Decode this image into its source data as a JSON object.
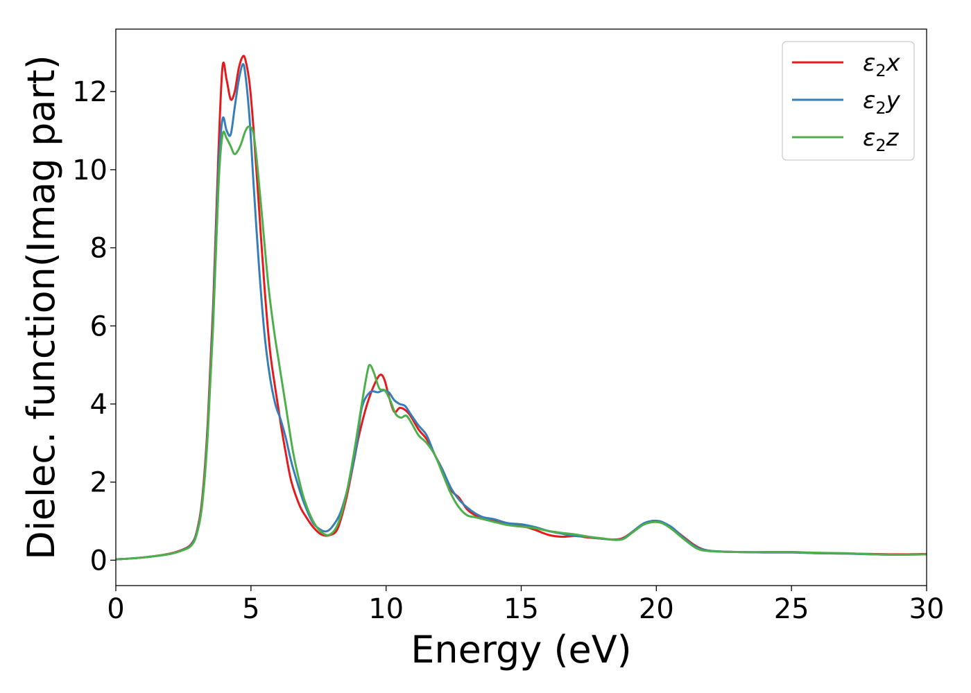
{
  "chart_data": {
    "type": "line",
    "title": "",
    "xlabel": "Energy (eV)",
    "ylabel": "Dielec. function(Imag part)",
    "xlim": [
      0,
      30
    ],
    "ylim": [
      -0.65,
      13.6
    ],
    "xticks": [
      0,
      5,
      10,
      15,
      20,
      25,
      30
    ],
    "yticks": [
      0,
      2,
      4,
      6,
      8,
      10,
      12
    ],
    "grid": false,
    "legend_position": "top-right",
    "series": [
      {
        "name": "ε₂x",
        "legend_base": "ε",
        "legend_sub": "2",
        "legend_suffix": "x",
        "color": "#e41a1c",
        "x": [
          0,
          1,
          2,
          2.5,
          2.8,
          3.0,
          3.2,
          3.4,
          3.6,
          3.8,
          3.95,
          4.1,
          4.25,
          4.4,
          4.55,
          4.7,
          4.8,
          4.95,
          5.1,
          5.3,
          5.5,
          5.7,
          5.9,
          6.1,
          6.3,
          6.5,
          6.8,
          7.0,
          7.3,
          7.6,
          7.9,
          8.2,
          8.5,
          8.8,
          9.0,
          9.3,
          9.6,
          9.8,
          9.95,
          10.1,
          10.3,
          10.5,
          10.7,
          10.9,
          11.2,
          11.5,
          11.8,
          12.1,
          12.4,
          12.7,
          13.0,
          13.3,
          13.6,
          14.0,
          14.5,
          15.0,
          15.5,
          16.0,
          16.5,
          17.0,
          17.5,
          18.0,
          18.5,
          18.8,
          19.1,
          19.5,
          19.8,
          20.1,
          20.3,
          20.6,
          21.0,
          21.5,
          22,
          23,
          24,
          25,
          25.5,
          26,
          27,
          28,
          29,
          30
        ],
        "values": [
          0.02,
          0.07,
          0.17,
          0.28,
          0.42,
          0.75,
          1.6,
          3.5,
          6.5,
          10.5,
          12.65,
          12.3,
          11.8,
          12.0,
          12.6,
          12.9,
          12.8,
          12.2,
          11.0,
          9.0,
          7.0,
          5.4,
          4.4,
          3.5,
          2.7,
          2.0,
          1.4,
          1.15,
          0.85,
          0.66,
          0.64,
          0.8,
          1.5,
          2.5,
          3.2,
          4.0,
          4.55,
          4.75,
          4.6,
          4.2,
          3.8,
          3.9,
          3.85,
          3.7,
          3.35,
          3.1,
          2.7,
          2.3,
          1.8,
          1.6,
          1.3,
          1.15,
          1.05,
          1.0,
          0.92,
          0.88,
          0.78,
          0.65,
          0.6,
          0.62,
          0.58,
          0.55,
          0.53,
          0.58,
          0.72,
          0.92,
          1.0,
          1.0,
          0.95,
          0.82,
          0.6,
          0.35,
          0.24,
          0.21,
          0.2,
          0.2,
          0.19,
          0.18,
          0.17,
          0.16,
          0.15,
          0.16
        ]
      },
      {
        "name": "ε₂y",
        "legend_base": "ε",
        "legend_sub": "2",
        "legend_suffix": "y",
        "color": "#377eb8",
        "x": [
          0,
          1,
          2,
          2.5,
          2.8,
          3.0,
          3.2,
          3.4,
          3.6,
          3.8,
          3.95,
          4.1,
          4.25,
          4.4,
          4.55,
          4.7,
          4.8,
          4.95,
          5.1,
          5.3,
          5.5,
          5.7,
          5.9,
          6.1,
          6.3,
          6.5,
          6.8,
          7.0,
          7.3,
          7.6,
          7.8,
          8.0,
          8.3,
          8.6,
          8.9,
          9.1,
          9.4,
          9.7,
          9.9,
          10.1,
          10.3,
          10.5,
          10.7,
          10.9,
          11.2,
          11.5,
          11.8,
          12.1,
          12.4,
          12.7,
          13.0,
          13.3,
          13.6,
          14.0,
          14.5,
          15.0,
          15.5,
          16.0,
          16.5,
          17.0,
          17.5,
          18.0,
          18.5,
          18.8,
          19.1,
          19.5,
          19.8,
          20.1,
          20.3,
          20.6,
          21.0,
          21.5,
          22,
          23,
          24,
          25,
          25.5,
          26,
          27,
          28,
          29,
          30
        ],
        "values": [
          0.02,
          0.07,
          0.16,
          0.27,
          0.4,
          0.72,
          1.5,
          3.3,
          6.2,
          10.0,
          11.3,
          11.0,
          10.9,
          11.6,
          12.3,
          12.7,
          12.4,
          11.3,
          9.6,
          7.5,
          5.8,
          4.7,
          4.0,
          3.6,
          3.1,
          2.5,
          1.8,
          1.4,
          0.95,
          0.77,
          0.74,
          0.85,
          1.2,
          1.9,
          2.9,
          3.9,
          4.3,
          4.3,
          4.35,
          4.3,
          4.1,
          4.0,
          3.95,
          3.75,
          3.45,
          3.2,
          2.7,
          2.3,
          1.85,
          1.55,
          1.35,
          1.2,
          1.1,
          1.05,
          0.95,
          0.92,
          0.85,
          0.75,
          0.68,
          0.62,
          0.6,
          0.55,
          0.52,
          0.56,
          0.72,
          0.93,
          1.0,
          1.0,
          0.95,
          0.83,
          0.58,
          0.33,
          0.24,
          0.21,
          0.2,
          0.2,
          0.19,
          0.18,
          0.17,
          0.15,
          0.14,
          0.15
        ]
      },
      {
        "name": "ε₂z",
        "legend_base": "ε",
        "legend_sub": "2",
        "legend_suffix": "z",
        "color": "#4daf4a",
        "x": [
          0,
          1,
          2,
          2.5,
          2.8,
          3.0,
          3.2,
          3.4,
          3.6,
          3.8,
          3.95,
          4.1,
          4.25,
          4.4,
          4.6,
          4.8,
          4.95,
          5.1,
          5.25,
          5.45,
          5.65,
          5.85,
          6.05,
          6.3,
          6.55,
          6.8,
          7.0,
          7.3,
          7.6,
          7.9,
          8.2,
          8.5,
          8.8,
          9.1,
          9.3,
          9.4,
          9.55,
          9.75,
          9.95,
          10.15,
          10.35,
          10.55,
          10.75,
          10.95,
          11.2,
          11.5,
          11.8,
          12.1,
          12.4,
          12.7,
          13.0,
          13.3,
          13.6,
          14.0,
          14.5,
          15.0,
          15.5,
          16.0,
          16.5,
          17.0,
          17.5,
          18.0,
          18.5,
          18.8,
          19.1,
          19.5,
          19.8,
          20.1,
          20.3,
          20.6,
          21.0,
          21.5,
          22,
          23,
          24,
          25,
          25.5,
          26,
          27,
          28,
          29,
          30
        ],
        "values": [
          0.02,
          0.07,
          0.16,
          0.26,
          0.38,
          0.68,
          1.45,
          3.2,
          6.0,
          9.6,
          10.9,
          10.8,
          10.6,
          10.4,
          10.6,
          11.0,
          11.1,
          10.9,
          10.0,
          8.5,
          7.0,
          5.9,
          5.0,
          3.9,
          2.8,
          2.0,
          1.5,
          1.0,
          0.72,
          0.65,
          0.9,
          1.6,
          2.7,
          4.0,
          4.8,
          5.0,
          4.8,
          4.4,
          4.35,
          4.1,
          3.75,
          3.65,
          3.7,
          3.5,
          3.2,
          3.0,
          2.7,
          2.2,
          1.7,
          1.35,
          1.15,
          1.1,
          1.05,
          0.98,
          0.9,
          0.86,
          0.82,
          0.75,
          0.7,
          0.66,
          0.6,
          0.56,
          0.52,
          0.55,
          0.7,
          0.9,
          0.97,
          0.97,
          0.92,
          0.78,
          0.55,
          0.3,
          0.23,
          0.21,
          0.21,
          0.21,
          0.2,
          0.19,
          0.18,
          0.15,
          0.14,
          0.15
        ]
      }
    ]
  }
}
